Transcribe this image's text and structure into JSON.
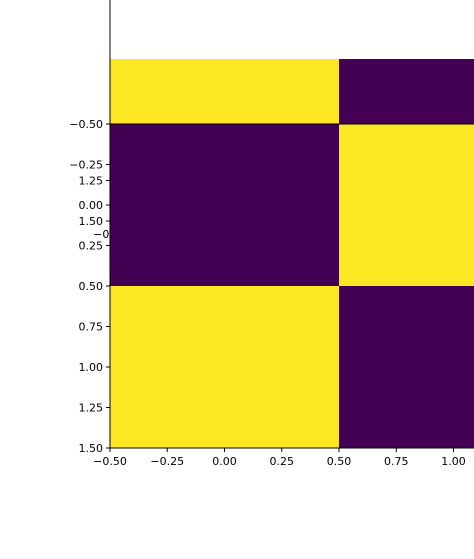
{
  "chart_data": [
    {
      "type": "heatmap",
      "colormap": "viridis",
      "colors": {
        "low": "#440154",
        "high": "#fde725"
      },
      "x_tick_labels": [
        "−0.50",
        "−0.25",
        "0.00",
        "0.25",
        "0.50",
        "0.75",
        "1.00"
      ],
      "x_ticks": [
        -0.5,
        -0.25,
        0,
        0.25,
        0.5,
        0.75,
        1.0
      ],
      "y_tick_labels": [
        "1.25",
        "1.50"
      ],
      "y_ticks": [
        1.25,
        1.5
      ],
      "visible_x_range": [
        -0.5,
        1.08
      ],
      "visible_y_range": [
        1.06,
        1.5
      ],
      "cells": [
        {
          "x": [
            -0.5,
            0.5
          ],
          "y": [
            0.5,
            1.5
          ],
          "level": "high"
        },
        {
          "x": [
            0.5,
            1.5
          ],
          "y": [
            0.5,
            1.5
          ],
          "level": "low"
        }
      ]
    },
    {
      "type": "heatmap",
      "colormap": "viridis",
      "colors": {
        "low": "#440154",
        "high": "#fde725"
      },
      "x_tick_labels": [
        "−0.50",
        "−0.25",
        "0.00",
        "0.25",
        "0.50",
        "0.75",
        "1.00"
      ],
      "x_ticks": [
        -0.5,
        -0.25,
        0,
        0.25,
        0.5,
        0.75,
        1.0
      ],
      "y_tick_labels": [
        "−0.50",
        "−0.25",
        "0.00",
        "0.25",
        "0.50",
        "0.75",
        "1.00",
        "1.25",
        "1.50"
      ],
      "y_ticks": [
        -0.5,
        -0.25,
        0,
        0.25,
        0.5,
        0.75,
        1.0,
        1.25,
        1.5
      ],
      "visible_x_range": [
        -0.5,
        1.08
      ],
      "visible_y_range": [
        -0.5,
        1.5
      ],
      "cells": [
        {
          "x": [
            -0.5,
            0.5
          ],
          "y": [
            -0.5,
            0.5
          ],
          "level": "low"
        },
        {
          "x": [
            0.5,
            1.5
          ],
          "y": [
            -0.5,
            0.5
          ],
          "level": "high"
        },
        {
          "x": [
            -0.5,
            0.5
          ],
          "y": [
            0.5,
            1.5
          ],
          "level": "high"
        },
        {
          "x": [
            0.5,
            1.5
          ],
          "y": [
            0.5,
            1.5
          ],
          "level": "low"
        }
      ]
    }
  ]
}
